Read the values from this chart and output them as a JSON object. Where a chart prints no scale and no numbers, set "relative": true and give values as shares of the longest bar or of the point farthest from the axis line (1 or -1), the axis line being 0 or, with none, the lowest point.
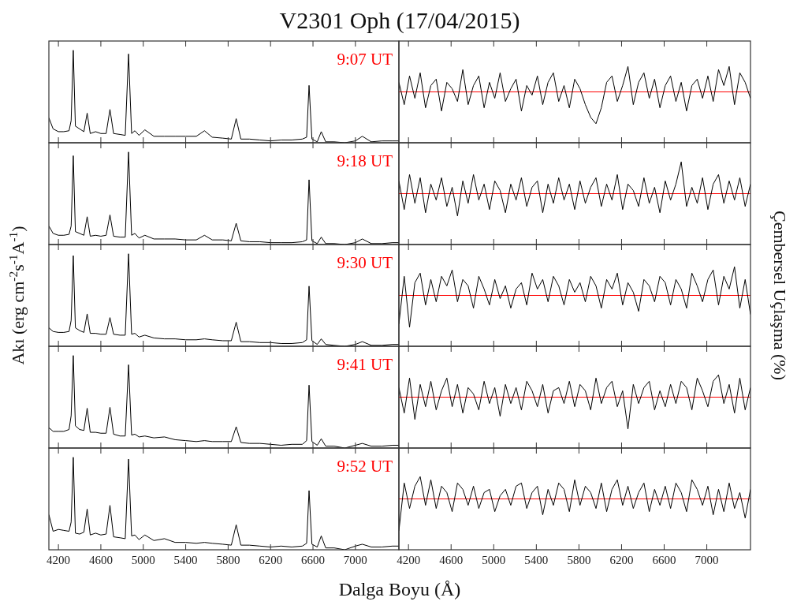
{
  "chart_data": [
    {
      "type": "line",
      "title": "V2301 Oph (17/04/2015)",
      "relative": true,
      "tick_labels": false,
      "xlim": [
        4110,
        7410
      ],
      "xticks": [
        4200,
        4600,
        5000,
        5400,
        5800,
        6200,
        6600,
        7000
      ],
      "annotations": [
        "9:07 UT"
      ],
      "x": [
        4110,
        4150,
        4200,
        4250,
        4300,
        4320,
        4340,
        4360,
        4400,
        4440,
        4471,
        4500,
        4550,
        4600,
        4650,
        4686,
        4720,
        4780,
        4830,
        4861,
        4890,
        4921,
        4960,
        5015,
        5100,
        5200,
        5300,
        5400,
        5500,
        5577,
        5650,
        5750,
        5830,
        5876,
        5920,
        6000,
        6100,
        6200,
        6300,
        6400,
        6500,
        6540,
        6563,
        6590,
        6640,
        6678,
        6720,
        6800,
        6900,
        7000,
        7065,
        7150,
        7250,
        7350,
        7410
      ],
      "series": [
        {
          "color": "#000000",
          "values": [
            0.27,
            0.15,
            0.12,
            0.12,
            0.13,
            0.24,
            1,
            0.18,
            0.15,
            0.12,
            0.32,
            0.1,
            0.12,
            0.1,
            0.1,
            0.36,
            0.1,
            0.09,
            0.08,
            0.96,
            0.1,
            0.13,
            0.08,
            0.14,
            0.07,
            0.07,
            0.07,
            0.07,
            0.07,
            0.13,
            0.06,
            0.05,
            0.04,
            0.26,
            0.04,
            0.04,
            0.03,
            0.02,
            0.03,
            0.03,
            0.04,
            0.06,
            0.62,
            0.04,
            0.01,
            0.12,
            0.01,
            0.01,
            0,
            0.02,
            0.07,
            0.01,
            0.02,
            0.02,
            0.02
          ]
        }
      ]
    },
    {
      "type": "line",
      "relative": true,
      "tick_labels": false,
      "xlim": [
        4110,
        7410
      ],
      "xticks": [
        4200,
        4600,
        5000,
        5400,
        5800,
        6200,
        6600,
        7000
      ],
      "ref_lines": [
        {
          "axis": "y",
          "value": 0,
          "color": "#ff0000"
        }
      ],
      "x": [
        4110,
        4160,
        4210,
        4260,
        4310,
        4360,
        4410,
        4460,
        4510,
        4560,
        4610,
        4660,
        4710,
        4760,
        4810,
        4860,
        4910,
        4960,
        5010,
        5060,
        5110,
        5160,
        5210,
        5260,
        5310,
        5360,
        5410,
        5460,
        5510,
        5560,
        5610,
        5660,
        5710,
        5760,
        5810,
        5860,
        5910,
        5960,
        6010,
        6060,
        6110,
        6160,
        6210,
        6260,
        6310,
        6360,
        6410,
        6460,
        6510,
        6560,
        6610,
        6660,
        6710,
        6760,
        6810,
        6860,
        6910,
        6960,
        7010,
        7060,
        7110,
        7160,
        7210,
        7260,
        7310,
        7360,
        7410
      ],
      "series": [
        {
          "color": "#000000",
          "values": [
            0.3,
            -0.4,
            0.5,
            -0.2,
            0.6,
            -0.5,
            0.2,
            0.4,
            -0.6,
            0.3,
            0.1,
            -0.3,
            0.7,
            -0.4,
            0.2,
            0.5,
            -0.5,
            0.3,
            -0.2,
            0.6,
            -0.3,
            0.1,
            0.4,
            -0.6,
            0.2,
            -0.1,
            0.5,
            -0.4,
            0.3,
            0.6,
            -0.3,
            0.2,
            -0.5,
            0.4,
            0.1,
            -0.4,
            -0.8,
            -1,
            -0.5,
            0.3,
            0.5,
            -0.3,
            0.2,
            0.8,
            -0.4,
            0.3,
            0.6,
            -0.2,
            0.4,
            -0.5,
            0.2,
            0.5,
            -0.3,
            0.3,
            -0.6,
            0.2,
            0.4,
            -0.2,
            0.5,
            -0.3,
            0.7,
            0.2,
            0.8,
            -0.4,
            0.6,
            0.3,
            -0.2
          ]
        }
      ]
    },
    {
      "type": "line",
      "relative": true,
      "tick_labels": false,
      "xlim": [
        4110,
        7410
      ],
      "xticks": [
        4200,
        4600,
        5000,
        5400,
        5800,
        6200,
        6600,
        7000
      ],
      "annotations": [
        "9:18 UT"
      ],
      "x": [
        4110,
        4150,
        4200,
        4250,
        4300,
        4320,
        4340,
        4360,
        4400,
        4440,
        4471,
        4500,
        4550,
        4600,
        4650,
        4686,
        4720,
        4780,
        4830,
        4861,
        4890,
        4921,
        4960,
        5015,
        5100,
        5200,
        5300,
        5400,
        5500,
        5577,
        5650,
        5750,
        5830,
        5876,
        5920,
        6000,
        6100,
        6200,
        6300,
        6400,
        6500,
        6540,
        6563,
        6590,
        6640,
        6678,
        6720,
        6800,
        6900,
        7000,
        7065,
        7150,
        7250,
        7350,
        7410
      ],
      "series": [
        {
          "color": "#000000",
          "values": [
            0.2,
            0.12,
            0.1,
            0.1,
            0.11,
            0.2,
            0.96,
            0.14,
            0.12,
            0.1,
            0.3,
            0.09,
            0.1,
            0.09,
            0.1,
            0.32,
            0.09,
            0.08,
            0.08,
            1,
            0.1,
            0.12,
            0.07,
            0.1,
            0.06,
            0.06,
            0.06,
            0.05,
            0.05,
            0.1,
            0.05,
            0.05,
            0.04,
            0.23,
            0.04,
            0.03,
            0.03,
            0.02,
            0.02,
            0.02,
            0.03,
            0.05,
            0.7,
            0.04,
            0.01,
            0.08,
            0.01,
            0.01,
            0,
            0.02,
            0.06,
            0.01,
            0.01,
            0.02,
            0.02
          ]
        }
      ]
    },
    {
      "type": "line",
      "relative": true,
      "tick_labels": false,
      "xlim": [
        4110,
        7410
      ],
      "xticks": [
        4200,
        4600,
        5000,
        5400,
        5800,
        6200,
        6600,
        7000
      ],
      "ref_lines": [
        {
          "axis": "y",
          "value": 0,
          "color": "#ff0000"
        }
      ],
      "x": [
        4110,
        4160,
        4210,
        4260,
        4310,
        4360,
        4410,
        4460,
        4510,
        4560,
        4610,
        4660,
        4710,
        4760,
        4810,
        4860,
        4910,
        4960,
        5010,
        5060,
        5110,
        5160,
        5210,
        5260,
        5310,
        5360,
        5410,
        5460,
        5510,
        5560,
        5610,
        5660,
        5710,
        5760,
        5810,
        5860,
        5910,
        5960,
        6010,
        6060,
        6110,
        6160,
        6210,
        6260,
        6310,
        6360,
        6410,
        6460,
        6510,
        6560,
        6610,
        6660,
        6710,
        6760,
        6810,
        6860,
        6910,
        6960,
        7010,
        7060,
        7110,
        7160,
        7210,
        7260,
        7310,
        7360,
        7410
      ],
      "series": [
        {
          "color": "#000000",
          "values": [
            0.4,
            -0.5,
            0.6,
            -0.3,
            0.5,
            -0.6,
            0.3,
            -0.2,
            0.5,
            -0.4,
            0.2,
            -0.7,
            0.4,
            -0.3,
            0.6,
            -0.2,
            0.3,
            -0.5,
            0.4,
            0.1,
            -0.6,
            0.3,
            -0.2,
            0.5,
            -0.4,
            0.2,
            0.4,
            -0.6,
            0.3,
            -0.3,
            0.5,
            -0.2,
            0.3,
            -0.5,
            0.4,
            -0.3,
            0.2,
            0.5,
            -0.4,
            0.3,
            -0.2,
            0.6,
            -0.5,
            0.3,
            0.1,
            -0.4,
            0.5,
            -0.3,
            0.2,
            -0.6,
            0.4,
            -0.2,
            0.3,
            1,
            -0.4,
            0.2,
            -0.3,
            0.5,
            -0.5,
            0.3,
            0.6,
            -0.3,
            0.4,
            -0.2,
            0.5,
            -0.4,
            0.3
          ]
        }
      ]
    },
    {
      "type": "line",
      "relative": true,
      "tick_labels": false,
      "ylabel": "Akı (erg cm$^{-2}$s$^{-1}$A$^{-1}$)",
      "xlim": [
        4110,
        7410
      ],
      "xticks": [
        4200,
        4600,
        5000,
        5400,
        5800,
        6200,
        6600,
        7000
      ],
      "annotations": [
        "9:30 UT"
      ],
      "x": [
        4110,
        4150,
        4200,
        4250,
        4300,
        4320,
        4340,
        4360,
        4400,
        4440,
        4471,
        4500,
        4550,
        4600,
        4650,
        4686,
        4720,
        4780,
        4830,
        4861,
        4890,
        4921,
        4960,
        5015,
        5100,
        5200,
        5300,
        5400,
        5500,
        5577,
        5650,
        5750,
        5830,
        5876,
        5920,
        6000,
        6100,
        6200,
        6300,
        6400,
        6500,
        6540,
        6563,
        6590,
        6640,
        6678,
        6720,
        6800,
        6900,
        7000,
        7065,
        7150,
        7250,
        7350,
        7410
      ],
      "series": [
        {
          "color": "#000000",
          "values": [
            0.2,
            0.16,
            0.15,
            0.15,
            0.16,
            0.28,
            0.98,
            0.2,
            0.17,
            0.15,
            0.35,
            0.14,
            0.14,
            0.13,
            0.13,
            0.31,
            0.13,
            0.12,
            0.12,
            1,
            0.13,
            0.14,
            0.1,
            0.12,
            0.09,
            0.08,
            0.08,
            0.07,
            0.07,
            0.08,
            0.07,
            0.06,
            0.06,
            0.26,
            0.05,
            0.05,
            0.04,
            0.04,
            0.03,
            0.03,
            0.04,
            0.07,
            0.65,
            0.06,
            0.02,
            0.08,
            0.02,
            0.01,
            0,
            0.02,
            0.05,
            0.01,
            0.01,
            0.02,
            0.02
          ]
        }
      ]
    },
    {
      "type": "line",
      "relative": true,
      "tick_labels": false,
      "ylabel": "Çembersel Uçlaşma (%)",
      "xlim": [
        4110,
        7410
      ],
      "xticks": [
        4200,
        4600,
        5000,
        5400,
        5800,
        6200,
        6600,
        7000
      ],
      "ref_lines": [
        {
          "axis": "y",
          "value": 0,
          "color": "#ff0000"
        }
      ],
      "x": [
        4110,
        4160,
        4210,
        4260,
        4310,
        4360,
        4410,
        4460,
        4510,
        4560,
        4610,
        4660,
        4710,
        4760,
        4810,
        4860,
        4910,
        4960,
        5010,
        5060,
        5110,
        5160,
        5210,
        5260,
        5310,
        5360,
        5410,
        5460,
        5510,
        5560,
        5610,
        5660,
        5710,
        5760,
        5810,
        5860,
        5910,
        5960,
        6010,
        6060,
        6110,
        6160,
        6210,
        6260,
        6310,
        6360,
        6410,
        6460,
        6510,
        6560,
        6610,
        6660,
        6710,
        6760,
        6810,
        6860,
        6910,
        6960,
        7010,
        7060,
        7110,
        7160,
        7210,
        7260,
        7310,
        7360,
        7410
      ],
      "series": [
        {
          "color": "#000000",
          "values": [
            -0.9,
            0.6,
            -1,
            0.4,
            0.7,
            -0.3,
            0.5,
            -0.2,
            0.6,
            0.3,
            0.8,
            -0.2,
            0.5,
            0.3,
            -0.4,
            0.6,
            0.2,
            -0.3,
            0.5,
            -0.1,
            0.3,
            -0.4,
            0.2,
            0.4,
            -0.3,
            0.7,
            0.2,
            0.5,
            -0.2,
            0.6,
            0.3,
            -0.3,
            0.5,
            0.1,
            0.4,
            -0.2,
            0.6,
            0.3,
            -0.4,
            0.5,
            0.2,
            0.7,
            -0.3,
            0.4,
            0.1,
            -0.5,
            0.5,
            0.3,
            -0.2,
            0.6,
            0.4,
            -0.3,
            0.5,
            0.2,
            -0.4,
            0.7,
            0.3,
            -0.2,
            0.5,
            0.8,
            -0.3,
            0.6,
            0.2,
            0.9,
            -0.4,
            0.5,
            -0.6
          ]
        }
      ]
    },
    {
      "type": "line",
      "relative": true,
      "tick_labels": false,
      "xlim": [
        4110,
        7410
      ],
      "xticks": [
        4200,
        4600,
        5000,
        5400,
        5800,
        6200,
        6600,
        7000
      ],
      "annotations": [
        "9:41 UT"
      ],
      "x": [
        4110,
        4150,
        4200,
        4250,
        4300,
        4320,
        4340,
        4360,
        4400,
        4440,
        4471,
        4500,
        4550,
        4600,
        4650,
        4686,
        4720,
        4780,
        4830,
        4861,
        4890,
        4921,
        4960,
        5015,
        5100,
        5200,
        5300,
        5400,
        5500,
        5577,
        5650,
        5750,
        5830,
        5876,
        5920,
        6000,
        6100,
        6200,
        6300,
        6400,
        6500,
        6540,
        6563,
        6590,
        6640,
        6678,
        6720,
        6800,
        6900,
        7000,
        7065,
        7150,
        7250,
        7350,
        7410
      ],
      "series": [
        {
          "color": "#000000",
          "values": [
            0.22,
            0.18,
            0.18,
            0.18,
            0.2,
            0.35,
            1,
            0.24,
            0.2,
            0.19,
            0.43,
            0.17,
            0.17,
            0.16,
            0.16,
            0.44,
            0.15,
            0.13,
            0.13,
            0.9,
            0.14,
            0.15,
            0.12,
            0.13,
            0.11,
            0.12,
            0.09,
            0.08,
            0.07,
            0.08,
            0.07,
            0.07,
            0.07,
            0.23,
            0.06,
            0.05,
            0.05,
            0.04,
            0.03,
            0.04,
            0.04,
            0.08,
            0.68,
            0.07,
            0.03,
            0.1,
            0.02,
            0.02,
            0,
            0.03,
            0.05,
            0.02,
            0.02,
            0.03,
            0.03
          ]
        }
      ]
    },
    {
      "type": "line",
      "relative": true,
      "tick_labels": false,
      "xlim": [
        4110,
        7410
      ],
      "xticks": [
        4200,
        4600,
        5000,
        5400,
        5800,
        6200,
        6600,
        7000
      ],
      "ref_lines": [
        {
          "axis": "y",
          "value": 0,
          "color": "#ff0000"
        }
      ],
      "x": [
        4110,
        4160,
        4210,
        4260,
        4310,
        4360,
        4410,
        4460,
        4510,
        4560,
        4610,
        4660,
        4710,
        4760,
        4810,
        4860,
        4910,
        4960,
        5010,
        5060,
        5110,
        5160,
        5210,
        5260,
        5310,
        5360,
        5410,
        5460,
        5510,
        5560,
        5610,
        5660,
        5710,
        5760,
        5810,
        5860,
        5910,
        5960,
        6010,
        6060,
        6110,
        6160,
        6210,
        6260,
        6310,
        6360,
        6410,
        6460,
        6510,
        6560,
        6610,
        6660,
        6710,
        6760,
        6810,
        6860,
        6910,
        6960,
        7010,
        7060,
        7110,
        7160,
        7210,
        7260,
        7310,
        7360,
        7410
      ],
      "series": [
        {
          "color": "#000000",
          "values": [
            0.3,
            -0.5,
            0.6,
            -0.7,
            0.4,
            -0.3,
            0.5,
            -0.4,
            0.2,
            0.6,
            -0.3,
            0.4,
            -0.5,
            0.3,
            0.1,
            -0.4,
            0.5,
            -0.2,
            0.3,
            -0.6,
            0.4,
            -0.2,
            0.3,
            -0.4,
            0.5,
            0.2,
            -0.3,
            0.4,
            -0.5,
            0.2,
            0.3,
            -0.2,
            0.5,
            -0.3,
            0.4,
            0.2,
            -0.4,
            0.6,
            -0.2,
            0.3,
            0.5,
            -0.3,
            0.2,
            -1,
            0.4,
            -0.2,
            0.3,
            0.5,
            -0.4,
            0.2,
            -0.3,
            0.4,
            -0.2,
            0.5,
            0.3,
            -0.4,
            0.6,
            0.2,
            -0.3,
            0.5,
            0.7,
            -0.2,
            0.4,
            -0.5,
            0.6,
            -0.4,
            0.3
          ]
        }
      ]
    },
    {
      "type": "line",
      "relative": true,
      "tick_labels": "x",
      "xlabel": "Dalga Boyu (Å)",
      "xlim": [
        4110,
        7410
      ],
      "xticks": [
        4200,
        4600,
        5000,
        5400,
        5800,
        6200,
        6600,
        7000
      ],
      "annotations": [
        "9:52 UT"
      ],
      "x": [
        4110,
        4150,
        4200,
        4250,
        4300,
        4320,
        4340,
        4360,
        4400,
        4440,
        4471,
        4500,
        4550,
        4600,
        4650,
        4686,
        4720,
        4780,
        4830,
        4861,
        4890,
        4921,
        4960,
        5015,
        5100,
        5200,
        5300,
        5400,
        5500,
        5577,
        5650,
        5750,
        5830,
        5876,
        5920,
        6000,
        6100,
        6200,
        6300,
        6400,
        6500,
        6540,
        6563,
        6590,
        6640,
        6678,
        6720,
        6800,
        6900,
        7000,
        7065,
        7150,
        7250,
        7350,
        7410
      ],
      "series": [
        {
          "color": "#000000",
          "values": [
            0.38,
            0.2,
            0.22,
            0.21,
            0.2,
            0.3,
            1,
            0.18,
            0.17,
            0.19,
            0.44,
            0.16,
            0.18,
            0.16,
            0.17,
            0.48,
            0.14,
            0.13,
            0.12,
            0.98,
            0.15,
            0.16,
            0.11,
            0.16,
            0.1,
            0.12,
            0.08,
            0.08,
            0.07,
            0.08,
            0.07,
            0.06,
            0.05,
            0.27,
            0.05,
            0.05,
            0.04,
            0.03,
            0.04,
            0.03,
            0.04,
            0.07,
            0.64,
            0.06,
            0.03,
            0.15,
            0.02,
            0.02,
            0,
            0.04,
            0.06,
            0.03,
            0.03,
            0.04,
            0.04
          ]
        }
      ]
    },
    {
      "type": "line",
      "relative": true,
      "tick_labels": "x",
      "xlim": [
        4110,
        7410
      ],
      "xticks": [
        4200,
        4600,
        5000,
        5400,
        5800,
        6200,
        6600,
        7000
      ],
      "ref_lines": [
        {
          "axis": "y",
          "value": 0,
          "color": "#ff0000"
        }
      ],
      "x": [
        4110,
        4160,
        4210,
        4260,
        4310,
        4360,
        4410,
        4460,
        4510,
        4560,
        4610,
        4660,
        4710,
        4760,
        4810,
        4860,
        4910,
        4960,
        5010,
        5060,
        5110,
        5160,
        5210,
        5260,
        5310,
        5360,
        5410,
        5460,
        5510,
        5560,
        5610,
        5660,
        5710,
        5760,
        5810,
        5860,
        5910,
        5960,
        6010,
        6060,
        6110,
        6160,
        6210,
        6260,
        6310,
        6360,
        6410,
        6460,
        6510,
        6560,
        6610,
        6660,
        6710,
        6760,
        6810,
        6860,
        6910,
        6960,
        7010,
        7060,
        7110,
        7160,
        7210,
        7260,
        7310,
        7360,
        7410
      ],
      "series": [
        {
          "color": "#000000",
          "values": [
            -1,
            0.5,
            -0.3,
            0.4,
            0.7,
            -0.2,
            0.6,
            -0.3,
            0.4,
            0.2,
            -0.4,
            0.5,
            0.3,
            -0.2,
            0.4,
            -0.3,
            0.2,
            0.3,
            -0.4,
            0.1,
            0.3,
            -0.2,
            0.4,
            0.5,
            -0.3,
            0.2,
            0.4,
            -0.5,
            0.3,
            -0.2,
            0.5,
            0.3,
            -0.4,
            0.6,
            -0.2,
            0.4,
            0.2,
            -0.3,
            0.5,
            -0.4,
            0.3,
            0.6,
            -0.2,
            0.4,
            -0.3,
            0.2,
            0.5,
            -0.4,
            0.3,
            -0.2,
            0.4,
            -0.3,
            0.5,
            0.2,
            -0.4,
            0.6,
            0.3,
            -0.2,
            0.4,
            -0.5,
            0.3,
            -0.4,
            0.5,
            -0.3,
            0.2,
            -0.6,
            0.3
          ]
        }
      ]
    }
  ]
}
